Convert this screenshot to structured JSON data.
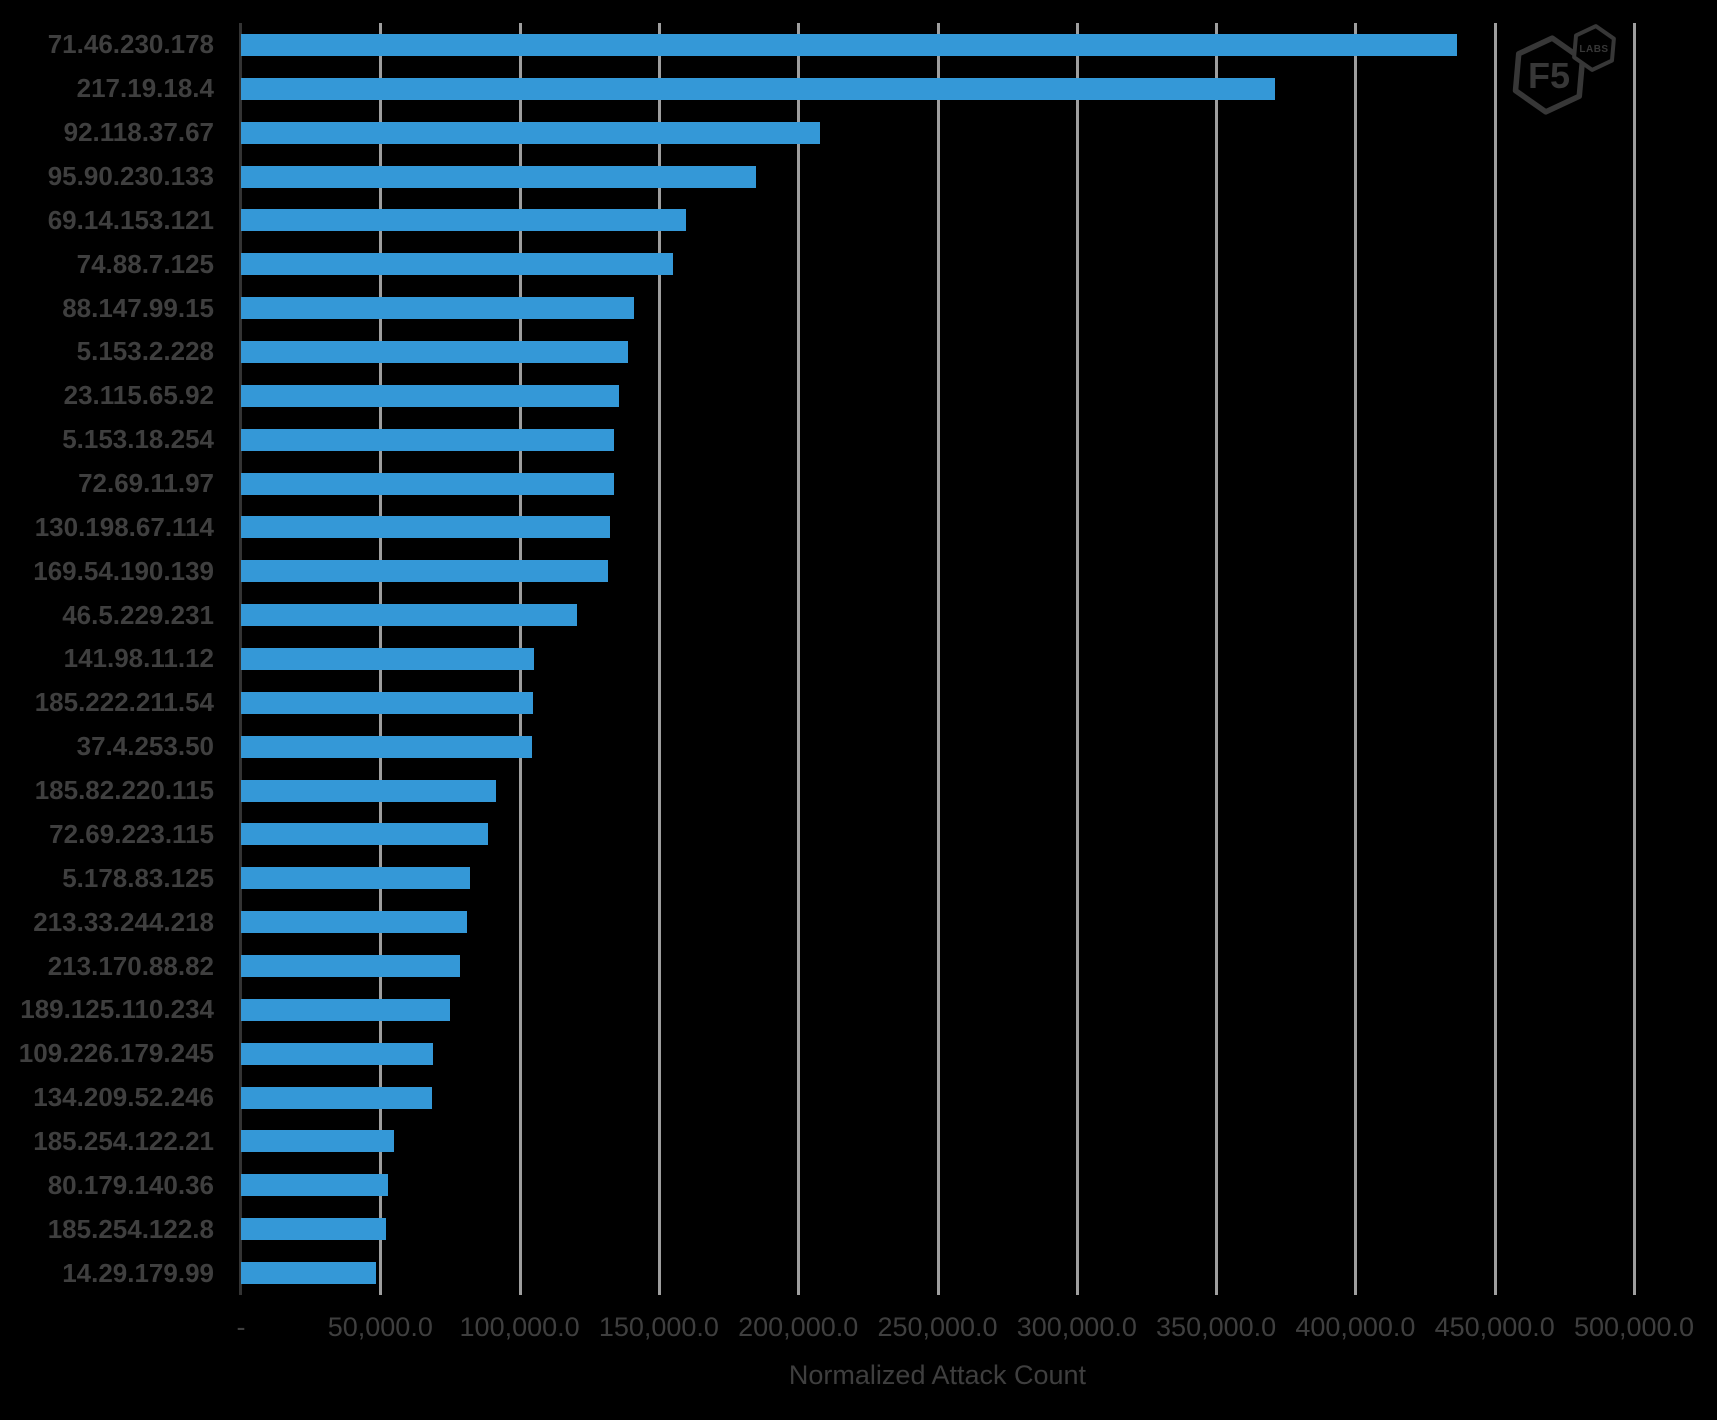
{
  "branding": {
    "logo_text": "F5",
    "logo_sub_text": "LABS"
  },
  "colors": {
    "background": "#000000",
    "bar": "#3498D7",
    "gridline": "#9E9E9E",
    "axis_line": "#333333",
    "text": "#3F3F3F",
    "logo": "#373737"
  },
  "chart_data": {
    "type": "bar",
    "orientation": "horizontal",
    "title": "",
    "xlabel": "Normalized Attack Count",
    "ylabel": "",
    "xlim": [
      0,
      500000
    ],
    "x_tick_interval": 50000,
    "x_tick_labels": [
      "-",
      "50,000.0",
      "100,000.0",
      "150,000.0",
      "200,000.0",
      "250,000.0",
      "300,000.0",
      "350,000.0",
      "400,000.0",
      "450,000.0",
      "500,000.0"
    ],
    "grid": true,
    "legend": false,
    "categories": [
      "71.46.230.178",
      "217.19.18.4",
      "92.118.37.67",
      "95.90.230.133",
      "69.14.153.121",
      "74.88.7.125",
      "88.147.99.15",
      "5.153.2.228",
      "23.115.65.92",
      "5.153.18.254",
      "72.69.11.97",
      "130.198.67.114",
      "169.54.190.139",
      "46.5.229.231",
      "141.98.11.12",
      "185.222.211.54",
      "37.4.253.50",
      "185.82.220.115",
      "72.69.223.115",
      "5.178.83.125",
      "213.33.244.218",
      "213.170.88.82",
      "189.125.110.234",
      "109.226.179.245",
      "134.209.52.246",
      "185.254.122.21",
      "80.179.140.36",
      "185.254.122.8",
      "14.29.179.99"
    ],
    "values": [
      436600,
      371200,
      208000,
      185000,
      159700,
      155200,
      140900,
      138900,
      135700,
      133900,
      133800,
      132300,
      131900,
      120700,
      105300,
      104800,
      104400,
      91400,
      88700,
      82300,
      81100,
      78700,
      75000,
      69000,
      68600,
      54800,
      52600,
      51900,
      48600
    ]
  }
}
